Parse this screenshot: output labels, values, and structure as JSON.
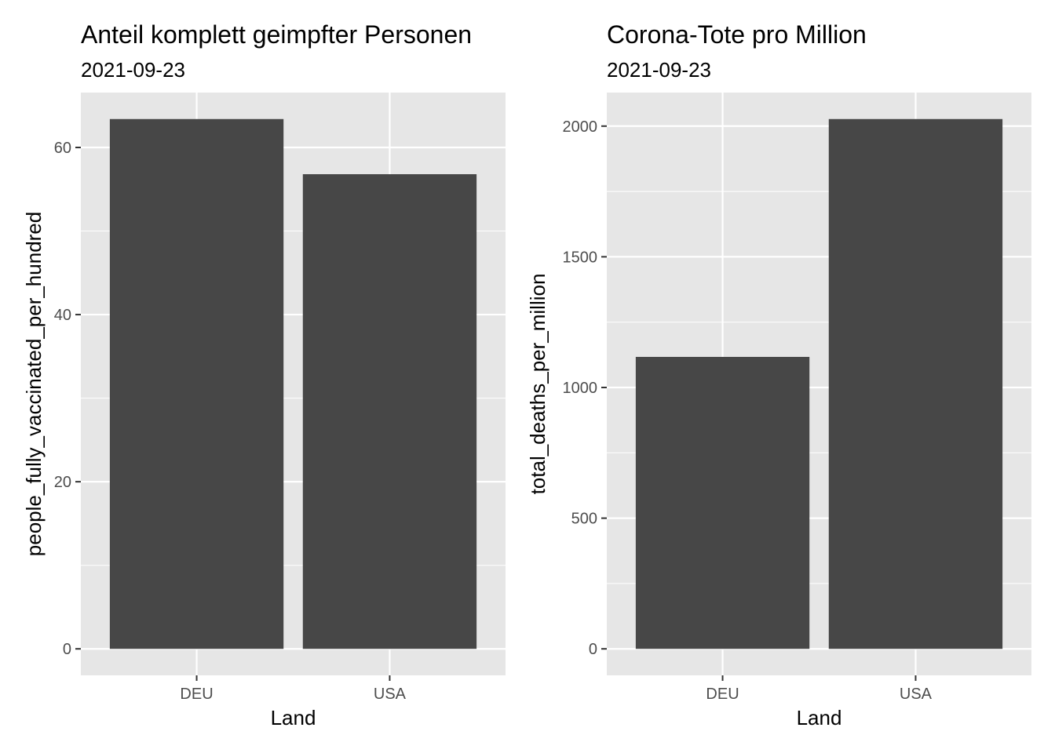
{
  "colors": {
    "panel_bg": "#e6e6e6",
    "grid": "#ffffff",
    "bar": "#474747",
    "tick_text": "#4d4d4d",
    "tick_mark": "#333333"
  },
  "chart_data": [
    {
      "type": "bar",
      "title": "Anteil komplett geimpfter Personen",
      "subtitle": "2021-09-23",
      "xlabel": "Land",
      "ylabel": "people_fully_vaccinated_per_hundred",
      "categories": [
        "DEU",
        "USA"
      ],
      "values": [
        63.4,
        56.8
      ],
      "ylim": [
        -3.17,
        66.57
      ],
      "yticks": [
        0,
        20,
        40,
        60
      ],
      "ytick_labels": [
        "0",
        "20",
        "40",
        "60"
      ],
      "minor_yticks": [
        10,
        30,
        50
      ],
      "grid": true
    },
    {
      "type": "bar",
      "title": "Corona-Tote pro Million",
      "subtitle": "2021-09-23",
      "xlabel": "Land",
      "ylabel": "total_deaths_per_million",
      "categories": [
        "DEU",
        "USA"
      ],
      "values": [
        1117,
        2027
      ],
      "ylim": [
        -101.35,
        2128.35
      ],
      "yticks": [
        0,
        500,
        1000,
        1500,
        2000
      ],
      "ytick_labels": [
        "0",
        "500",
        "1000",
        "1500",
        "2000"
      ],
      "minor_yticks": [
        250,
        750,
        1250,
        1750
      ],
      "grid": true
    }
  ]
}
